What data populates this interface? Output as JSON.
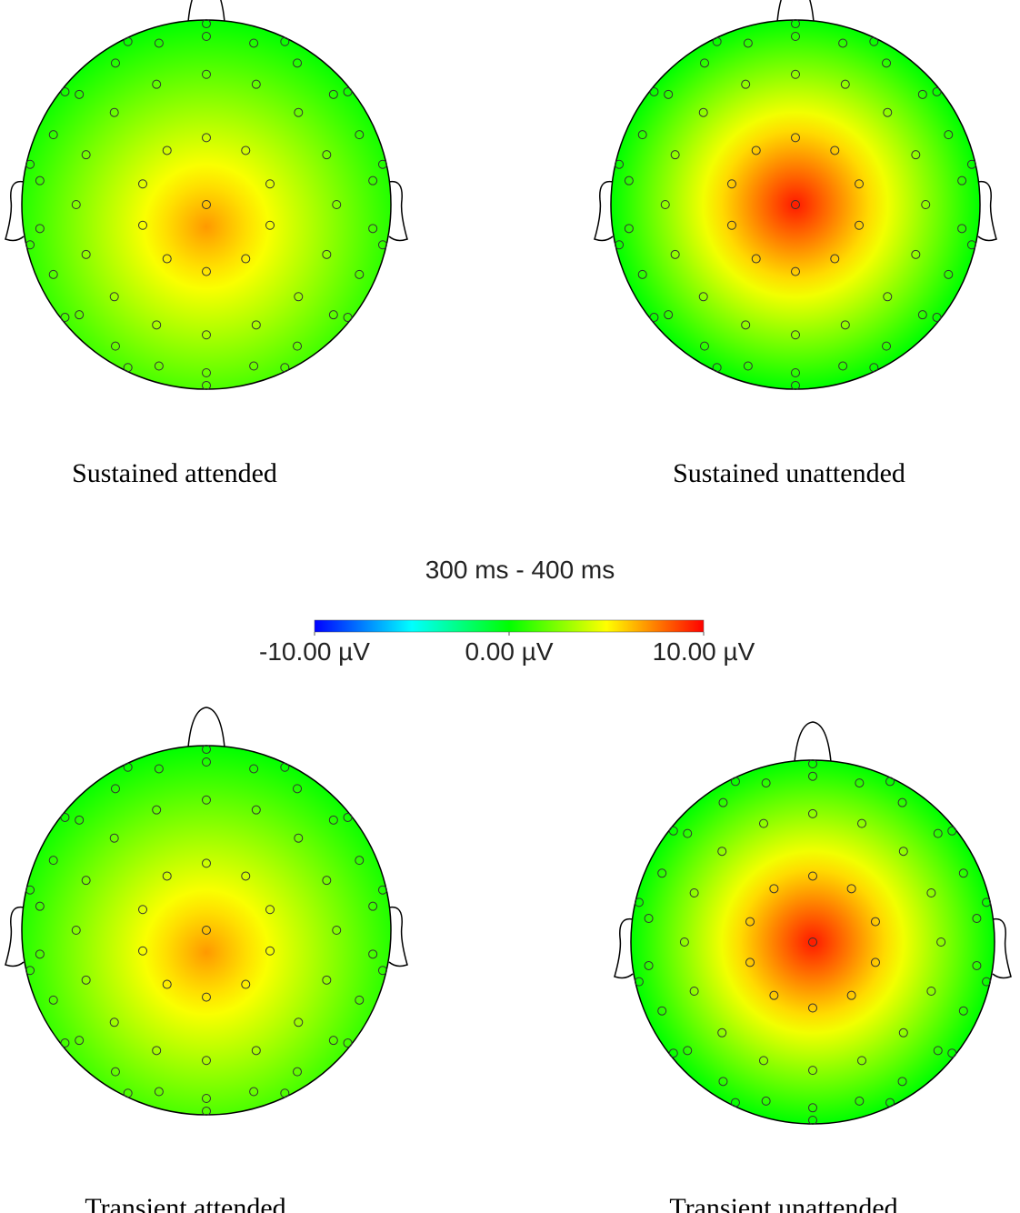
{
  "title": "300 ms - 400 ms",
  "colorbar": {
    "range": [
      -10,
      10
    ],
    "ticks": [
      {
        "value": -10,
        "label": "-10.00 µV"
      },
      {
        "value": 0,
        "label": "0.00 µV"
      },
      {
        "value": 10,
        "label": "10.00 µV"
      }
    ],
    "colors": [
      "#0000ff",
      "#00ffff",
      "#00ff00",
      "#ffff00",
      "#ff0000"
    ]
  },
  "maps": [
    {
      "label": "Sustained attended",
      "peak": 7,
      "rim": 0
    },
    {
      "label": "Sustained unattended",
      "peak": 9.5,
      "rim": 0
    },
    {
      "label": "Transient attended",
      "peak": 7,
      "rim": 0
    },
    {
      "label": "Transient unattended",
      "peak": 9.5,
      "rim": 0
    }
  ]
}
